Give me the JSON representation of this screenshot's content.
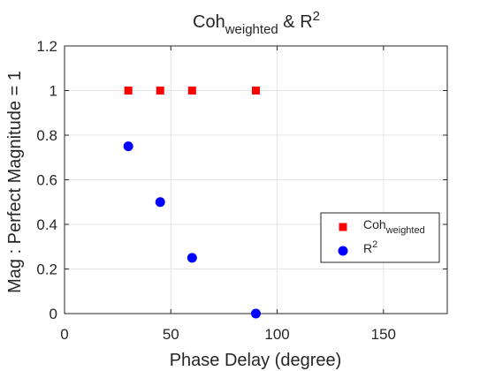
{
  "chart_data": {
    "type": "scatter",
    "title": {
      "main": "Coh",
      "main_sub": "weighted",
      "joiner": " & R",
      "joiner_sup": "2"
    },
    "xlabel": "Phase Delay (degree)",
    "ylabel": "Mag : Perfect Magnitude = 1",
    "xlim": [
      0,
      180
    ],
    "ylim": [
      0,
      1.2
    ],
    "xticks": [
      0,
      50,
      100,
      150
    ],
    "xtick_labels": [
      "0",
      "50",
      "100",
      "150"
    ],
    "yticks": [
      0,
      0.2,
      0.4,
      0.6,
      0.8,
      1,
      1.2
    ],
    "ytick_labels": [
      "0",
      "0.2",
      "0.4",
      "0.6",
      "0.8",
      "1",
      "1.2"
    ],
    "grid": true,
    "legend_position": "right",
    "series": [
      {
        "label_main": "Coh",
        "label_sub": "weighted",
        "label_sup": "",
        "marker": "square",
        "color": "#ff0000",
        "x": [
          30,
          45,
          60,
          90
        ],
        "y": [
          1,
          1,
          1,
          1
        ]
      },
      {
        "label_main": "R",
        "label_sub": "",
        "label_sup": "2",
        "marker": "circle",
        "color": "#0000ff",
        "x": [
          30,
          45,
          60,
          90
        ],
        "y": [
          0.75,
          0.5,
          0.25,
          0
        ]
      }
    ]
  }
}
